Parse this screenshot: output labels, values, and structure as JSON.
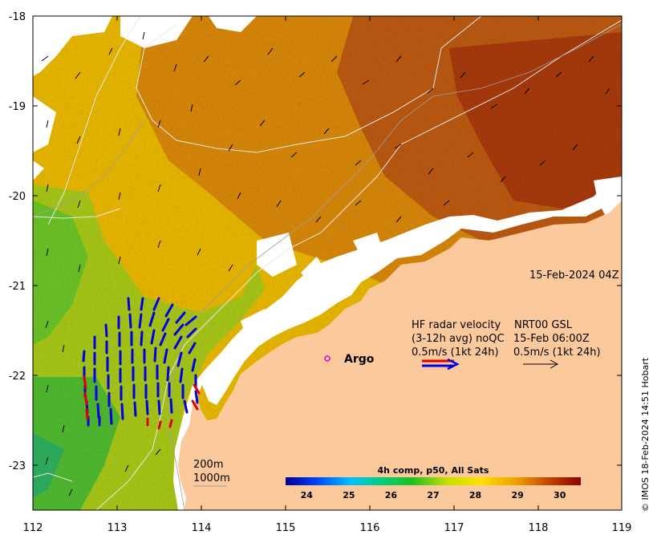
{
  "map": {
    "x_ticks": [
      "112",
      "113",
      "114",
      "115",
      "116",
      "117",
      "118",
      "119"
    ],
    "y_ticks": [
      "-18",
      "-19",
      "-20",
      "-21",
      "-22",
      "-23"
    ],
    "lon_range": [
      112,
      119
    ],
    "lat_range": [
      -23.5,
      -18
    ]
  },
  "timestamp": "15-Feb-2024 04Z",
  "radar_legend": {
    "line1": "HF radar velocity",
    "line2": "(3-12h avg) noQC",
    "line3": "0.5m/s (1kt 24h)",
    "nrt_line1": "NRT00 GSL",
    "nrt_line2": "15-Feb 06:00Z",
    "nrt_line3": "0.5m/s (1kt 24h)"
  },
  "argo_label": "Argo",
  "isobaths": [
    "200m",
    "1000m"
  ],
  "colorbar": {
    "title": "4h comp, p50, All Sats",
    "ticks": [
      "24",
      "25",
      "26",
      "27",
      "28",
      "29",
      "30"
    ],
    "min": 23.5,
    "max": 30.5,
    "colors": [
      "#00008f",
      "#0040ff",
      "#00c0ff",
      "#00d080",
      "#20c020",
      "#c8e000",
      "#ffe000",
      "#f0a000",
      "#c04000",
      "#8b0000"
    ]
  },
  "credit": "© IMOS 18-Feb-2024 14:51 Hobart",
  "colors": {
    "land": "#fcc99c",
    "sst_hot": "#b84a10",
    "sst_warm": "#eac000",
    "sst_cool": "#5cc032",
    "radar_vectors": "#0000e0",
    "nrt_vectors": "#e00000"
  }
}
